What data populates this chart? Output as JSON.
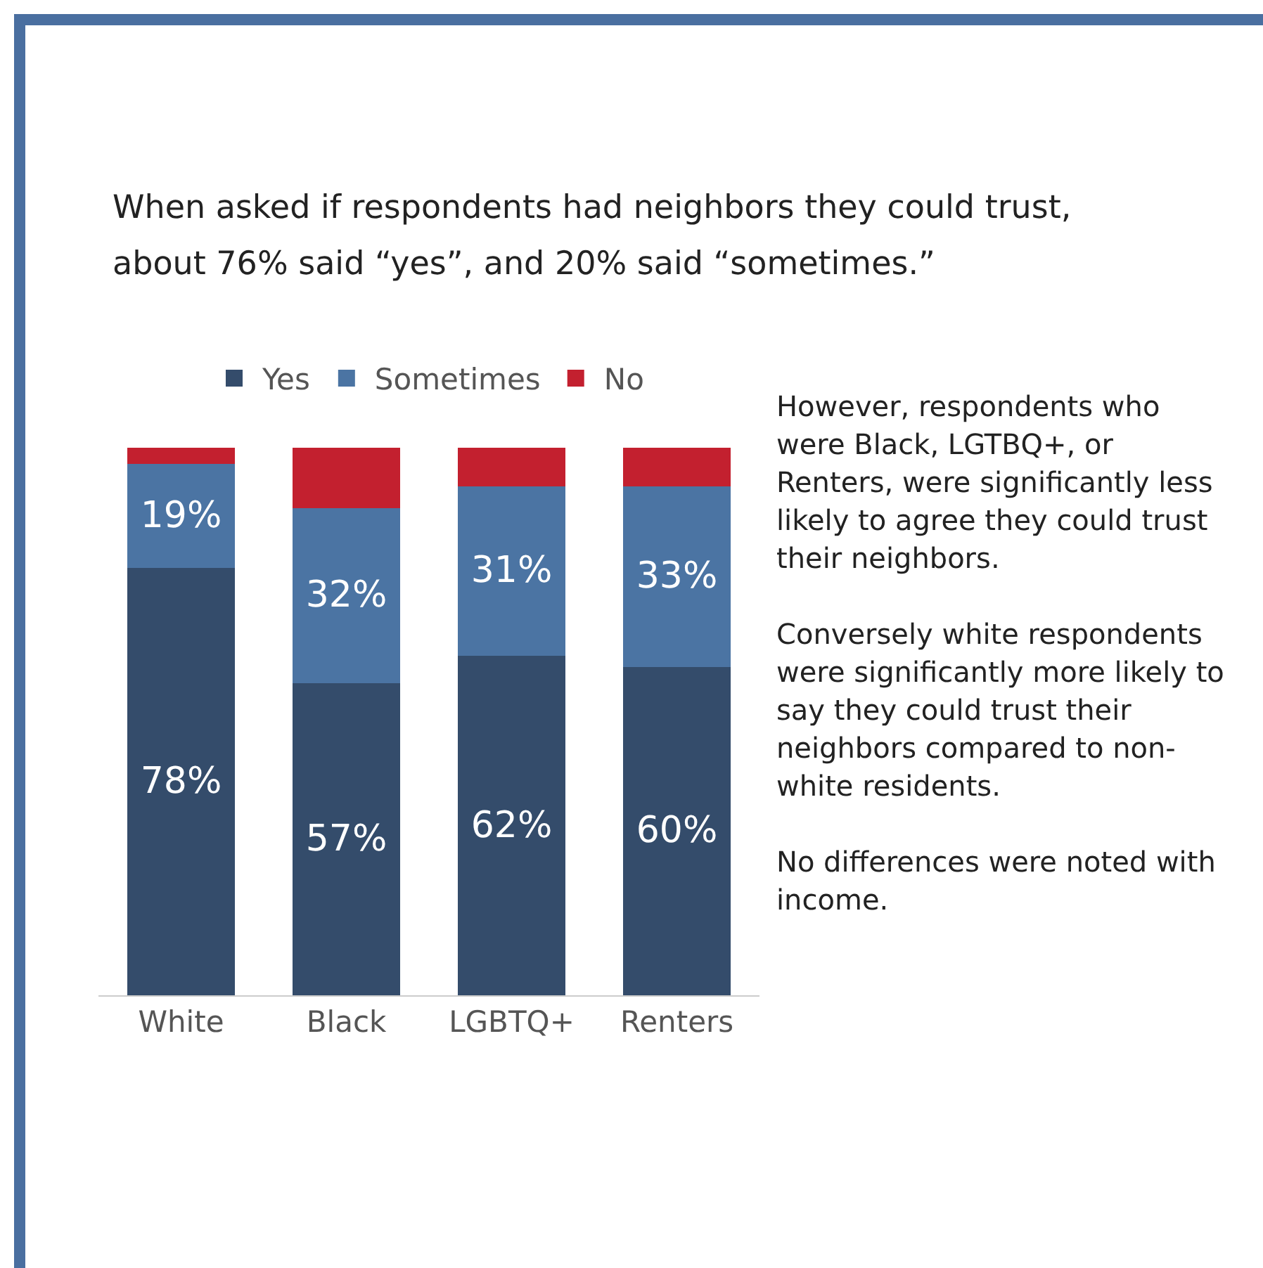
{
  "chart_data": {
    "type": "bar",
    "stacked": true,
    "title": "When asked if respondents had neighbors they could trust, about 76% said “yes”, and 20% said “sometimes.”",
    "categories": [
      "White",
      "Black",
      "LGBTQ+",
      "Renters"
    ],
    "series": [
      {
        "name": "Yes",
        "color": "#344c6b",
        "values": [
          78,
          57,
          62,
          60
        ],
        "value_labels": [
          "78%",
          "57%",
          "62%",
          "60%"
        ]
      },
      {
        "name": "Sometimes",
        "color": "#4b74a3",
        "values": [
          19,
          32,
          31,
          33
        ],
        "value_labels": [
          "19%",
          "32%",
          "31%",
          "33%"
        ]
      },
      {
        "name": "No",
        "color": "#c3202f",
        "values": [
          3,
          11,
          7,
          7
        ],
        "value_labels": [
          null,
          null,
          null,
          null
        ]
      }
    ],
    "legend": "top",
    "grid": false,
    "tick_labels": "x",
    "annotations": [
      "However, respondents who were Black, LGTBQ+, or Renters, were significantly less likely to agree they could trust their neighbors.",
      "Conversely white respondents were significantly more likely to say they could trust their neighbors compared to non-white residents.",
      "No differences were noted with income."
    ]
  }
}
